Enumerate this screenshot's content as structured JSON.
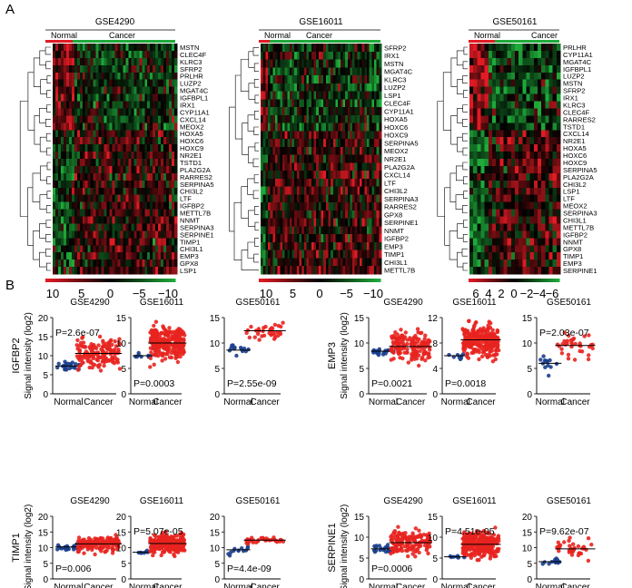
{
  "panel_labels": {
    "a": "A",
    "b": "B"
  },
  "heatmaps": [
    {
      "title": "GSE4290",
      "normal_label": "Normal",
      "cancer_label": "Cancer",
      "genes": [
        "MSTN",
        "CLEC4F",
        "KLRC3",
        "SFRP2",
        "PRLHR",
        "LUZP2",
        "MGAT4C",
        "IGFBPL1",
        "IRX1",
        "CYP11A1",
        "CXCL14",
        "MEOX2",
        "HOXA5",
        "HOXC6",
        "HOXC9",
        "NR2E1",
        "TSTD1",
        "PLA2G2A",
        "RARRES2",
        "SERPINA5",
        "CHI3L2",
        "LTF",
        "IGFBP2",
        "METTL7B",
        "NNMT",
        "SERPINA3",
        "SERPINE1",
        "TIMP1",
        "CHI3L1",
        "EMP3",
        "GPX8",
        "LSP1"
      ],
      "scale_ticks": [
        "10",
        "5",
        "0",
        "−5",
        "−10"
      ]
    },
    {
      "title": "GSE16011",
      "normal_label": "Normal",
      "cancer_label": "Cancer",
      "genes": [
        "SFRP2",
        "IRX1",
        "MSTN",
        "MGAT4C",
        "KLRC3",
        "LUZP2",
        "LSP1",
        "CLEC4F",
        "CYP11A1",
        "HOXA5",
        "HOXC6",
        "HOXC9",
        "SERPINA5",
        "MEOX2",
        "NR2E1",
        "PLA2G2A",
        "CXCL14",
        "LTF",
        "CHI3L2",
        "SERPINA3",
        "RARRES2",
        "GPX8",
        "SERPINE1",
        "NNMT",
        "IGFBP2",
        "EMP3",
        "TIMP1",
        "CHI3L1",
        "METTL7B"
      ],
      "scale_ticks": [
        "10",
        "5",
        "0",
        "−5",
        "−10"
      ]
    },
    {
      "title": "GSE50161",
      "normal_label": "Normal",
      "cancer_label": "Cancer",
      "genes": [
        "PRLHR",
        "CYP11A1",
        "MGAT4C",
        "IGFBPL1",
        "LUZP2",
        "MSTN",
        "SFRP2",
        "IRX1",
        "KLRC3",
        "CLEC4F",
        "RARRES2",
        "TSTD1",
        "CXCL14",
        "NR2E1",
        "HOXA5",
        "HOXC6",
        "HOXC9",
        "SERPINA5",
        "PLA2G2A",
        "CHI3L2",
        "LSP1",
        "LTF",
        "MEOX2",
        "SERPINA3",
        "CHI3L1",
        "METTL7B",
        "IGFBP2",
        "NNMT",
        "GPX8",
        "TIMP1",
        "EMP3",
        "SERPINE1"
      ],
      "scale_ticks": [
        "6",
        "4",
        "2",
        "0",
        "−2",
        "−4",
        "−6"
      ]
    }
  ],
  "scatter_common": {
    "normal_label": "Normal",
    "cancer_label": "Cancer",
    "ylabel_suffix": "Signal intensity (log2)"
  },
  "genes_b": [
    "IGFBP2",
    "EMP3",
    "TIMP1",
    "SERPINE1"
  ],
  "colors": {
    "normal": "#1a3e8c",
    "cancer": "#e8231f",
    "heat_high": "#e01b24",
    "heat_low": "#1faa3a"
  },
  "chart_data": [
    {
      "type": "scatter",
      "gene": "IGFBP2",
      "title": "GSE4290",
      "pvalue": "P=2.6e-07",
      "ylim": [
        0,
        20
      ],
      "yticks": [
        0,
        5,
        10,
        15,
        20
      ],
      "series": [
        {
          "name": "Normal",
          "center": 7.3,
          "sd": 0.9,
          "n": 23
        },
        {
          "name": "Cancer",
          "center": 10.6,
          "sd": 2.6,
          "n": 150
        }
      ]
    },
    {
      "type": "scatter",
      "gene": "IGFBP2",
      "title": "GSE16011",
      "pvalue": "P=0.0003",
      "ylim": [
        0,
        15
      ],
      "yticks": [
        0,
        5,
        10,
        15
      ],
      "series": [
        {
          "name": "Normal",
          "center": 7.5,
          "sd": 0.4,
          "n": 8
        },
        {
          "name": "Cancer",
          "center": 10,
          "sd": 2.2,
          "n": 250
        }
      ]
    },
    {
      "type": "scatter",
      "gene": "IGFBP2",
      "title": "GSE50161",
      "pvalue": "P=2.55e-09",
      "ylim": [
        0,
        15
      ],
      "yticks": [
        0,
        5,
        10,
        15
      ],
      "series": [
        {
          "name": "Normal",
          "center": 8.6,
          "sd": 0.8,
          "n": 13
        },
        {
          "name": "Cancer",
          "center": 12.4,
          "sd": 1.3,
          "n": 34
        }
      ]
    },
    {
      "type": "scatter",
      "gene": "EMP3",
      "title": "GSE4290",
      "pvalue": "P=0.0021",
      "ylim": [
        0,
        15
      ],
      "yticks": [
        0,
        5,
        10,
        15
      ],
      "series": [
        {
          "name": "Normal",
          "center": 8.4,
          "sd": 0.6,
          "n": 23
        },
        {
          "name": "Cancer",
          "center": 9.3,
          "sd": 2.0,
          "n": 150
        }
      ]
    },
    {
      "type": "scatter",
      "gene": "EMP3",
      "title": "GSE16011",
      "pvalue": "P=0.0018",
      "ylim": [
        0,
        12
      ],
      "yticks": [
        0,
        4,
        8,
        12
      ],
      "series": [
        {
          "name": "Normal",
          "center": 6,
          "sd": 0.4,
          "n": 8
        },
        {
          "name": "Cancer",
          "center": 8.5,
          "sd": 1.8,
          "n": 250
        }
      ]
    },
    {
      "type": "scatter",
      "gene": "EMP3",
      "title": "GSE50161",
      "pvalue": "P=2.03e-07",
      "ylim": [
        0,
        15
      ],
      "yticks": [
        0,
        5,
        10,
        15
      ],
      "series": [
        {
          "name": "Normal",
          "center": 6.0,
          "sd": 1.5,
          "n": 13
        },
        {
          "name": "Cancer",
          "center": 9.5,
          "sd": 1.6,
          "n": 34
        }
      ]
    },
    {
      "type": "scatter",
      "gene": "TIMP1",
      "title": "GSE4290",
      "pvalue": "P=0.006",
      "ylim": [
        0,
        20
      ],
      "yticks": [
        0,
        5,
        10,
        15,
        20
      ],
      "series": [
        {
          "name": "Normal",
          "center": 10.2,
          "sd": 0.7,
          "n": 23
        },
        {
          "name": "Cancer",
          "center": 11.2,
          "sd": 1.7,
          "n": 150
        }
      ]
    },
    {
      "type": "scatter",
      "gene": "TIMP1",
      "title": "GSE16011",
      "pvalue": "P=5.07e-05",
      "ylim": [
        0,
        20
      ],
      "yticks": [
        0,
        5,
        10,
        15,
        20
      ],
      "series": [
        {
          "name": "Normal",
          "center": 8.5,
          "sd": 0.4,
          "n": 8
        },
        {
          "name": "Cancer",
          "center": 11.3,
          "sd": 2.0,
          "n": 250
        }
      ]
    },
    {
      "type": "scatter",
      "gene": "TIMP1",
      "title": "GSE50161",
      "pvalue": "P=4.4e-09",
      "ylim": [
        0,
        20
      ],
      "yticks": [
        0,
        5,
        10,
        15,
        20
      ],
      "series": [
        {
          "name": "Normal",
          "center": 9.3,
          "sd": 1.2,
          "n": 13
        },
        {
          "name": "Cancer",
          "center": 12.4,
          "sd": 0.8,
          "n": 34
        }
      ]
    },
    {
      "type": "scatter",
      "gene": "SERPINE1",
      "title": "GSE4290",
      "pvalue": "P=0.0006",
      "ylim": [
        0,
        15
      ],
      "yticks": [
        0,
        5,
        10,
        15
      ],
      "series": [
        {
          "name": "Normal",
          "center": 7.2,
          "sd": 0.7,
          "n": 23
        },
        {
          "name": "Cancer",
          "center": 8.7,
          "sd": 2.0,
          "n": 150
        }
      ]
    },
    {
      "type": "scatter",
      "gene": "SERPINE1",
      "title": "GSE16011",
      "pvalue": "P=4.51e-05",
      "ylim": [
        0,
        15
      ],
      "yticks": [
        0,
        5,
        10,
        15
      ],
      "series": [
        {
          "name": "Normal",
          "center": 5.3,
          "sd": 0.2,
          "n": 8
        },
        {
          "name": "Cancer",
          "center": 8.3,
          "sd": 2.2,
          "n": 250
        }
      ]
    },
    {
      "type": "scatter",
      "gene": "SERPINE1",
      "title": "GSE50161",
      "pvalue": "P=9.62e-07",
      "ylim": [
        0,
        20
      ],
      "yticks": [
        0,
        5,
        10,
        15,
        20
      ],
      "series": [
        {
          "name": "Normal",
          "center": 5.5,
          "sd": 0.6,
          "n": 13
        },
        {
          "name": "Cancer",
          "center": 9.6,
          "sd": 2.3,
          "n": 34
        }
      ]
    }
  ]
}
